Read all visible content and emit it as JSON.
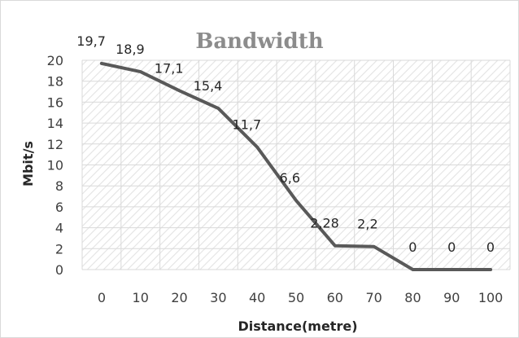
{
  "chart_data": {
    "type": "line",
    "title": "Bandwidth",
    "xlabel": "Distance(metre)",
    "ylabel": "Mbit/s",
    "categories": [
      "0",
      "10",
      "20",
      "30",
      "40",
      "50",
      "60",
      "70",
      "80",
      "90",
      "100"
    ],
    "x": [
      0,
      10,
      20,
      30,
      40,
      50,
      60,
      70,
      80,
      90,
      100
    ],
    "series": [
      {
        "values": [
          19.7,
          18.9,
          17.1,
          15.4,
          11.7,
          6.6,
          2.28,
          2.2,
          0,
          0,
          0
        ],
        "labels": [
          "19,7",
          "18,9",
          "17,1",
          "15,4",
          "11,7",
          "6,6",
          "2,28",
          "2,2",
          "0",
          "0",
          "0"
        ]
      }
    ],
    "ylim": [
      0,
      20
    ],
    "yticks": [
      "0",
      "2",
      "4",
      "6",
      "8",
      "10",
      "12",
      "14",
      "16",
      "18",
      "20"
    ],
    "grid": true,
    "grid_pattern": "diagonal-hatch",
    "colors": {
      "line": "#595959",
      "grid": "#d9d9d9",
      "hatch": "#e3e3e3",
      "title": "#8c8c8c"
    }
  }
}
